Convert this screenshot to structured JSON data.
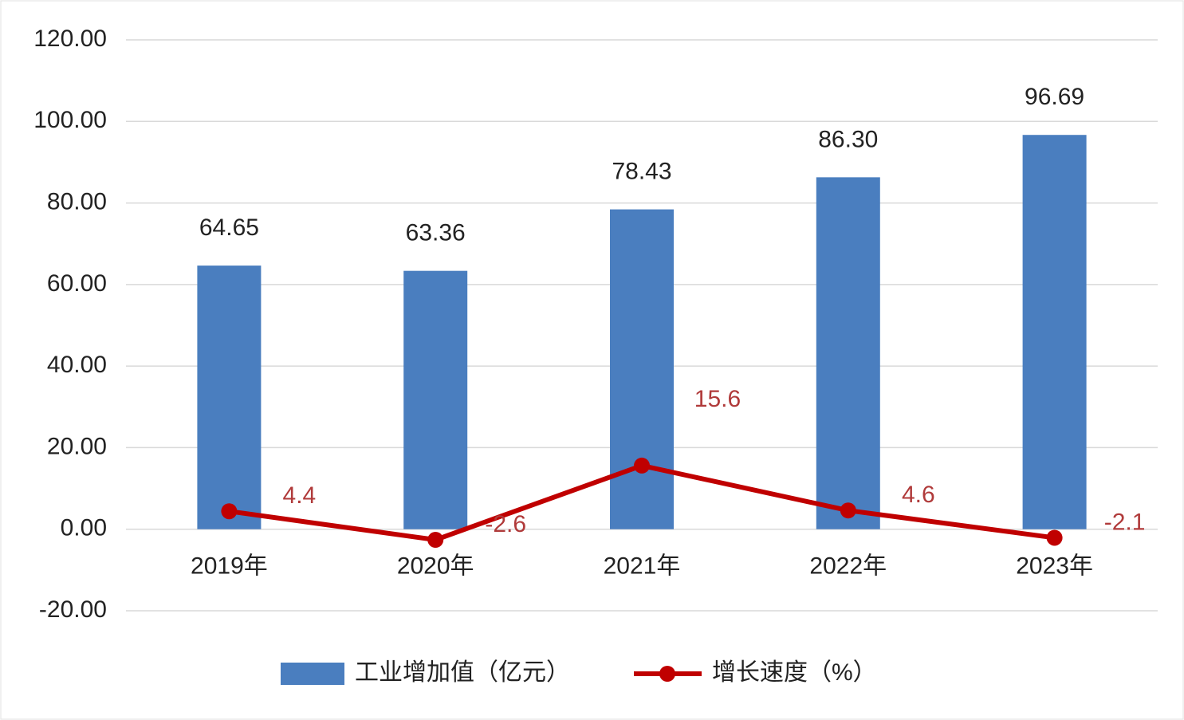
{
  "chart_data": {
    "type": "bar-line",
    "categories": [
      "2019年",
      "2020年",
      "2021年",
      "2022年",
      "2023年"
    ],
    "series": [
      {
        "name": "工业增加值（亿元）",
        "type": "bar",
        "color": "#4a7ebf",
        "values": [
          64.65,
          63.36,
          78.43,
          86.3,
          96.69
        ],
        "value_labels": [
          "64.65",
          "63.36",
          "78.43",
          "86.30",
          "96.69"
        ]
      },
      {
        "name": "增长速度（%）",
        "type": "line",
        "color": "#c00000",
        "values": [
          4.4,
          -2.6,
          15.6,
          4.6,
          -2.1
        ]
      }
    ],
    "ylim": [
      -20,
      120
    ],
    "yticks": [
      {
        "value": -20,
        "label": "-20.00"
      },
      {
        "value": 0,
        "label": "0.00"
      },
      {
        "value": 20,
        "label": "20.00"
      },
      {
        "value": 40,
        "label": "40.00"
      },
      {
        "value": 60,
        "label": "60.00"
      },
      {
        "value": 80,
        "label": "80.00"
      },
      {
        "value": 100,
        "label": "100.00"
      },
      {
        "value": 120,
        "label": "120.00"
      }
    ],
    "grid": true
  }
}
